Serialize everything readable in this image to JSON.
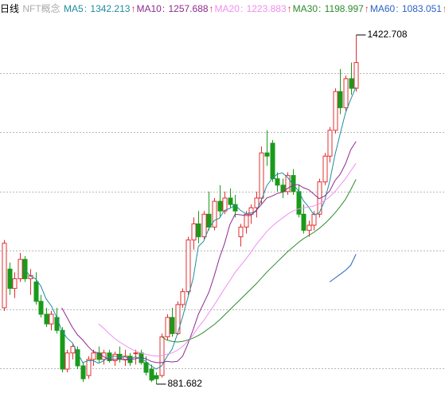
{
  "chart_data": {
    "type": "candlestick",
    "title": "日线",
    "subtitle": "NFT概念",
    "ylim": [
      838.5,
      1476.9
    ],
    "up_color": "#e03030",
    "down_color": "#1a9a1a",
    "open": [
      1000,
      1060,
      1030,
      1045,
      1075,
      1045,
      1040,
      1010,
      990,
      975,
      985,
      965,
      905,
      930,
      935,
      910,
      895,
      920,
      930,
      920,
      930,
      918,
      928,
      920,
      925,
      930,
      930,
      915,
      905,
      895,
      895,
      955,
      985,
      960,
      1005,
      1025,
      1105,
      1130,
      1110,
      1145,
      1125,
      1165,
      1150,
      1170,
      1160,
      1110,
      1125,
      1145,
      1155,
      1170,
      1240,
      1255,
      1200,
      1190,
      1180,
      1205,
      1180,
      1145,
      1120,
      1128,
      1145,
      1195,
      1235,
      1275,
      1335,
      1310,
      1355,
      1340
    ],
    "high": [
      1105,
      1070,
      1055,
      1085,
      1080,
      1060,
      1055,
      1020,
      1000,
      995,
      1000,
      970,
      935,
      945,
      940,
      915,
      925,
      935,
      940,
      935,
      935,
      932,
      940,
      935,
      930,
      935,
      935,
      925,
      912,
      900,
      960,
      990,
      1000,
      1010,
      1030,
      1110,
      1140,
      1150,
      1150,
      1180,
      1170,
      1190,
      1180,
      1185,
      1175,
      1130,
      1150,
      1160,
      1180,
      1250,
      1275,
      1260,
      1210,
      1200,
      1210,
      1215,
      1190,
      1160,
      1135,
      1150,
      1200,
      1240,
      1280,
      1340,
      1370,
      1360,
      1380,
      1422.708
    ],
    "low": [
      995,
      1020,
      1015,
      1040,
      1040,
      1020,
      1005,
      985,
      970,
      965,
      960,
      900,
      900,
      920,
      905,
      885,
      890,
      910,
      915,
      912,
      915,
      910,
      915,
      910,
      910,
      912,
      912,
      895,
      885,
      881.682,
      892,
      950,
      955,
      958,
      1000,
      1020,
      1090,
      1100,
      1105,
      1120,
      1120,
      1140,
      1145,
      1155,
      1140,
      1095,
      1115,
      1130,
      1140,
      1160,
      1220,
      1195,
      1180,
      1170,
      1175,
      1175,
      1140,
      1115,
      1110,
      1120,
      1140,
      1190,
      1225,
      1270,
      1300,
      1305,
      1330,
      1335
    ],
    "close": [
      1100,
      1030,
      1045,
      1075,
      1045,
      1050,
      1010,
      990,
      975,
      990,
      965,
      905,
      930,
      940,
      910,
      890,
      920,
      930,
      920,
      930,
      918,
      928,
      920,
      925,
      915,
      930,
      915,
      900,
      888,
      890,
      955,
      985,
      960,
      1005,
      1025,
      1105,
      1130,
      1110,
      1145,
      1125,
      1165,
      1150,
      1170,
      1160,
      1150,
      1125,
      1145,
      1155,
      1170,
      1240,
      1235,
      1200,
      1190,
      1180,
      1205,
      1180,
      1145,
      1120,
      1128,
      1145,
      1195,
      1235,
      1275,
      1335,
      1310,
      1355,
      1340,
      1380
    ],
    "series": [
      {
        "name": "MA5",
        "color": "#1f8e9e",
        "trend": "↑",
        "values": [
          null,
          null,
          null,
          null,
          1059,
          1049,
          1045,
          1034,
          1014,
          1003,
          986,
          965,
          953,
          946,
          930,
          915,
          918,
          918,
          914,
          918,
          924,
          925,
          924,
          924,
          921,
          924,
          921,
          917,
          910,
          905,
          910,
          924,
          936,
          959,
          986,
          1016,
          1045,
          1095,
          1103,
          1123,
          1135,
          1139,
          1151,
          1154,
          1159,
          1151,
          1146,
          1147,
          1149,
          1167,
          1189,
          1200,
          1207,
          1209,
          1202,
          1191,
          1182,
          1166,
          1156,
          1144,
          1147,
          1165,
          1196,
          1237,
          1270,
          1302,
          1323,
          1342.213
        ]
      },
      {
        "name": "MA10",
        "color": "#8e2a8e",
        "trend": "↑",
        "values": [
          null,
          null,
          null,
          null,
          null,
          null,
          null,
          null,
          null,
          null,
          null,
          1000,
          985,
          970,
          958,
          950,
          940,
          932,
          930,
          924,
          920,
          920,
          921,
          919,
          920,
          921,
          923,
          921,
          917,
          915,
          915,
          917,
          916,
          917,
          925,
          944,
          966,
          990,
          1007,
          1024,
          1049,
          1077,
          1100,
          1129,
          1145,
          1144,
          1143,
          1143,
          1151,
          1160,
          1170,
          1173,
          1177,
          1179,
          1185,
          1190,
          1191,
          1186,
          1183,
          1176,
          1169,
          1173,
          1181,
          1197,
          1207,
          1223,
          1245,
          1257.688
        ]
      },
      {
        "name": "MA20",
        "color": "#f08ef0",
        "trend": "↑",
        "values": [
          null,
          null,
          null,
          null,
          null,
          null,
          null,
          null,
          null,
          null,
          null,
          null,
          null,
          null,
          null,
          null,
          null,
          null,
          975,
          968,
          960,
          953,
          947,
          942,
          937,
          933,
          930,
          928,
          926,
          925,
          926,
          928,
          930,
          934,
          940,
          948,
          958,
          970,
          980,
          992,
          1004,
          1017,
          1030,
          1042,
          1055,
          1065,
          1075,
          1086,
          1098,
          1108,
          1118,
          1126,
          1133,
          1139,
          1145,
          1150,
          1153,
          1155,
          1156,
          1158,
          1161,
          1166,
          1172,
          1180,
          1190,
          1200,
          1212,
          1223.883
        ]
      },
      {
        "name": "MA30",
        "color": "#2e8b2e",
        "trend": "↑",
        "values": [
          null,
          null,
          null,
          null,
          null,
          null,
          null,
          null,
          null,
          null,
          null,
          null,
          null,
          null,
          null,
          null,
          null,
          null,
          null,
          null,
          null,
          null,
          null,
          null,
          null,
          null,
          null,
          null,
          null,
          null,
          955,
          950,
          948,
          947,
          948,
          950,
          953,
          957,
          962,
          968,
          974,
          981,
          989,
          997,
          1005,
          1013,
          1021,
          1029,
          1037,
          1046,
          1055,
          1063,
          1071,
          1079,
          1087,
          1094,
          1101,
          1107,
          1112,
          1117,
          1123,
          1130,
          1138,
          1147,
          1157,
          1168,
          1183,
          1198.997
        ]
      },
      {
        "name": "MA60",
        "color": "#2a62c4",
        "trend": "↑",
        "values": [
          null,
          null,
          null,
          null,
          null,
          null,
          null,
          null,
          null,
          null,
          null,
          null,
          null,
          null,
          null,
          null,
          null,
          null,
          null,
          null,
          null,
          null,
          null,
          null,
          null,
          null,
          null,
          null,
          null,
          null,
          null,
          null,
          null,
          null,
          null,
          null,
          null,
          null,
          null,
          null,
          null,
          null,
          null,
          null,
          null,
          null,
          null,
          null,
          null,
          null,
          null,
          null,
          null,
          null,
          null,
          null,
          null,
          null,
          null,
          null,
          null,
          null,
          1040,
          1046,
          1052,
          1058,
          1066,
          1083.051
        ]
      }
    ]
  }
}
